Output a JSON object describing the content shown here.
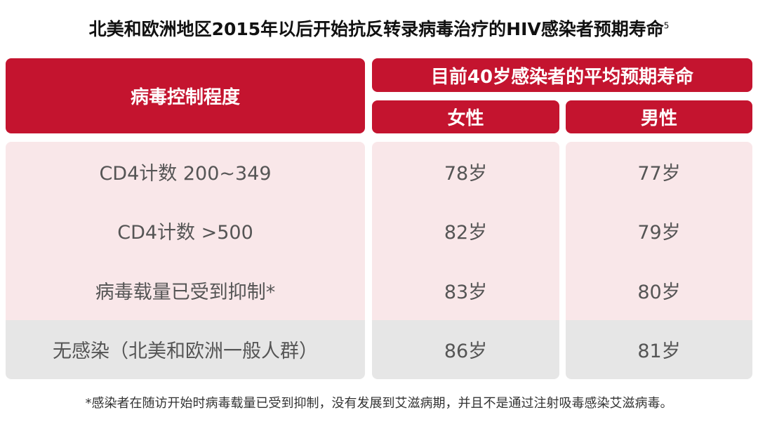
{
  "header": {
    "title": "北美和欧洲地区2015年以后开始抗反转录病毒治疗的HIV感染者预期寿命",
    "ref": "5"
  },
  "table": {
    "columns": {
      "control": "病毒控制程度",
      "life": "目前40岁感染者的平均预期寿命",
      "female": "女性",
      "male": "男性"
    },
    "rows": [
      [
        "CD4计数 200~349",
        "78岁",
        "77岁"
      ],
      [
        "CD4计数 >500",
        "82岁",
        "79岁"
      ],
      [
        "病毒载量已受到抑制*",
        "83岁",
        "80岁"
      ],
      [
        "无感染（北美和欧洲一般人群）",
        "86岁",
        "81岁"
      ]
    ]
  },
  "footnote": "*感染者在随访开始时病毒载量已受到抑制，没有发展到艾滋病期，并且不是通过注射吸毒感染艾滋病毒。"
}
